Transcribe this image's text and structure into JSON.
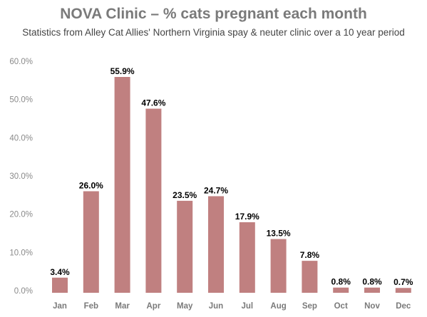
{
  "chart_data": {
    "type": "bar",
    "title": "NOVA Clinic – % cats pregnant each month",
    "subtitle": "Statistics from Alley Cat Allies' Northern Virginia spay & neuter clinic over a 10 year period",
    "categories": [
      "Jan",
      "Feb",
      "Mar",
      "Apr",
      "May",
      "Jun",
      "Jul",
      "Aug",
      "Sep",
      "Oct",
      "Nov",
      "Dec"
    ],
    "values": [
      3.4,
      26.0,
      55.9,
      47.6,
      23.5,
      24.7,
      17.9,
      13.5,
      7.8,
      0.8,
      0.8,
      0.7
    ],
    "value_labels": [
      "3.4%",
      "26.0%",
      "55.9%",
      "47.6%",
      "23.5%",
      "24.7%",
      "17.9%",
      "13.5%",
      "7.8%",
      "0.8%",
      "0.8%",
      "0.7%"
    ],
    "y_ticks": [
      "0.0%",
      "10.0%",
      "20.0%",
      "30.0%",
      "40.0%",
      "50.0%",
      "60.0%"
    ],
    "ylim": [
      0,
      60
    ],
    "xlabel": "",
    "ylabel": "",
    "grid": false,
    "legend": "none",
    "bar_color": "#c08080"
  }
}
